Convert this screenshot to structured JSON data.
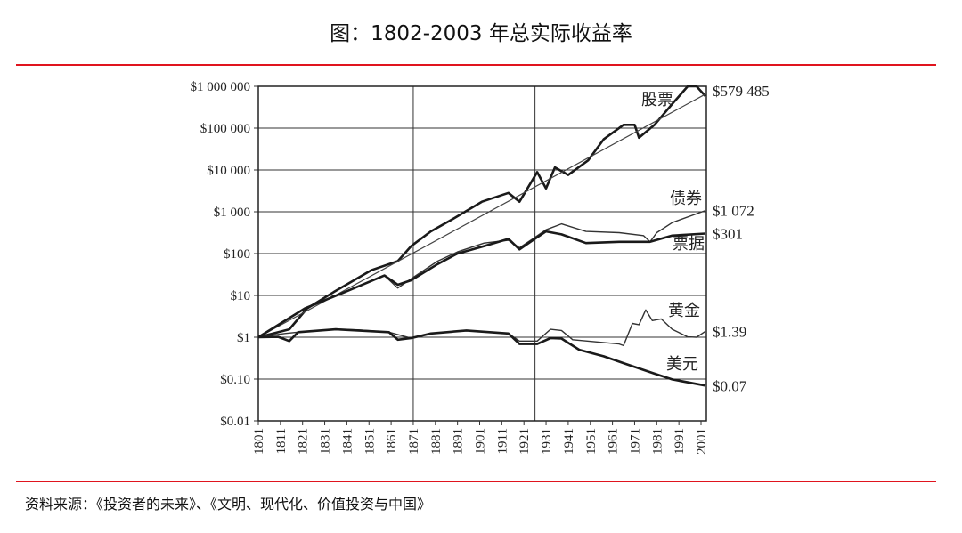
{
  "title": "图：1802-2003 年总实际收益率",
  "source": "资料来源：《投资者的未来》、《文明、现代化、价值投资与中国》",
  "chart_data": {
    "type": "line",
    "title": "",
    "xlabel": "",
    "ylabel": "",
    "yscale": "log",
    "ylim": [
      0.01,
      1000000
    ],
    "xlim": [
      1801,
      2003
    ],
    "grid": {
      "horizontal": true,
      "vertical_years": [
        1871,
        1926
      ]
    },
    "y_ticks": [
      {
        "value": 1000000,
        "label": "$1 000 000"
      },
      {
        "value": 100000,
        "label": "$100 000"
      },
      {
        "value": 10000,
        "label": "$10 000"
      },
      {
        "value": 1000,
        "label": "$1 000"
      },
      {
        "value": 100,
        "label": "$100"
      },
      {
        "value": 10,
        "label": "$10"
      },
      {
        "value": 1,
        "label": "$1"
      },
      {
        "value": 0.1,
        "label": "$0.10"
      },
      {
        "value": 0.01,
        "label": "$0.01"
      }
    ],
    "x_ticks": [
      "1801",
      "1811",
      "1821",
      "1831",
      "1841",
      "1851",
      "1861",
      "1871",
      "1881",
      "1891",
      "1901",
      "1911",
      "1921",
      "1931",
      "1941",
      "1951",
      "1961",
      "1971",
      "1981",
      "1991",
      "2001"
    ],
    "series": [
      {
        "name": "股票",
        "end_label": "$579 485",
        "weight": "thick",
        "x": [
          1801,
          1815,
          1823,
          1835,
          1852,
          1864,
          1870,
          1879,
          1888,
          1902,
          1914,
          1919,
          1927,
          1931,
          1935,
          1941,
          1950,
          1957,
          1966,
          1971,
          1973,
          1980,
          1988,
          1995,
          1999,
          2003
        ],
        "y": [
          1,
          1.55,
          4.9,
          12,
          40,
          66,
          150,
          340,
          630,
          1740,
          2820,
          1740,
          8900,
          3630,
          11500,
          7600,
          17000,
          54000,
          120000,
          120000,
          59000,
          120000,
          380000,
          1000000,
          1000000,
          579485
        ]
      },
      {
        "name": "",
        "weight": "trend",
        "x": [
          1801,
          2003
        ],
        "y": [
          1,
          650000
        ]
      },
      {
        "name": "债券",
        "end_label": "$1 072",
        "weight": "thin",
        "x": [
          1801,
          1822,
          1840,
          1858,
          1864,
          1870,
          1882,
          1891,
          1903,
          1914,
          1919,
          1925,
          1931,
          1938,
          1949,
          1964,
          1975,
          1978,
          1981,
          1988,
          2003
        ],
        "y": [
          1,
          4.9,
          12,
          30,
          15,
          25,
          66,
          110,
          178,
          209,
          138,
          224,
          372,
          513,
          339,
          316,
          269,
          191,
          316,
          550,
          1072
        ]
      },
      {
        "name": "票据",
        "end_label": "$301",
        "weight": "thick",
        "x": [
          1801,
          1822,
          1840,
          1858,
          1864,
          1870,
          1882,
          1891,
          1903,
          1914,
          1919,
          1925,
          1931,
          1938,
          1949,
          1964,
          1978,
          1988,
          2003
        ],
        "y": [
          1,
          4.9,
          12,
          30,
          18,
          23,
          56,
          100,
          151,
          224,
          126,
          209,
          339,
          288,
          178,
          191,
          191,
          269,
          301
        ]
      },
      {
        "name": "黄金",
        "end_label": "$1.39",
        "weight": "thin",
        "x": [
          1801,
          1813,
          1819,
          1836,
          1846,
          1860,
          1865,
          1870,
          1879,
          1895,
          1914,
          1919,
          1927,
          1933,
          1938,
          1943,
          1964,
          1966,
          1970,
          1973,
          1976,
          1979,
          1983,
          1988,
          1995,
          1999,
          2003
        ],
        "y": [
          1,
          1.23,
          1.32,
          1.55,
          1.5,
          1.32,
          1.12,
          0.95,
          1.23,
          1.45,
          1.23,
          0.81,
          0.81,
          1.55,
          1.45,
          0.87,
          0.69,
          0.63,
          2.14,
          2.0,
          4.5,
          2.5,
          2.75,
          1.55,
          1.02,
          1.0,
          1.39
        ]
      },
      {
        "name": "美元",
        "end_label": "$0.07",
        "weight": "thick",
        "x": [
          1801,
          1810,
          1815,
          1819,
          1836,
          1860,
          1864,
          1870,
          1879,
          1895,
          1914,
          1919,
          1927,
          1933,
          1938,
          1946,
          1957,
          1966,
          1980,
          1988,
          2003
        ],
        "y": [
          1,
          1.02,
          0.81,
          1.32,
          1.55,
          1.32,
          0.87,
          0.95,
          1.23,
          1.45,
          1.23,
          0.69,
          0.69,
          0.95,
          0.93,
          0.5,
          0.35,
          0.24,
          0.135,
          0.098,
          0.07
        ]
      }
    ]
  }
}
